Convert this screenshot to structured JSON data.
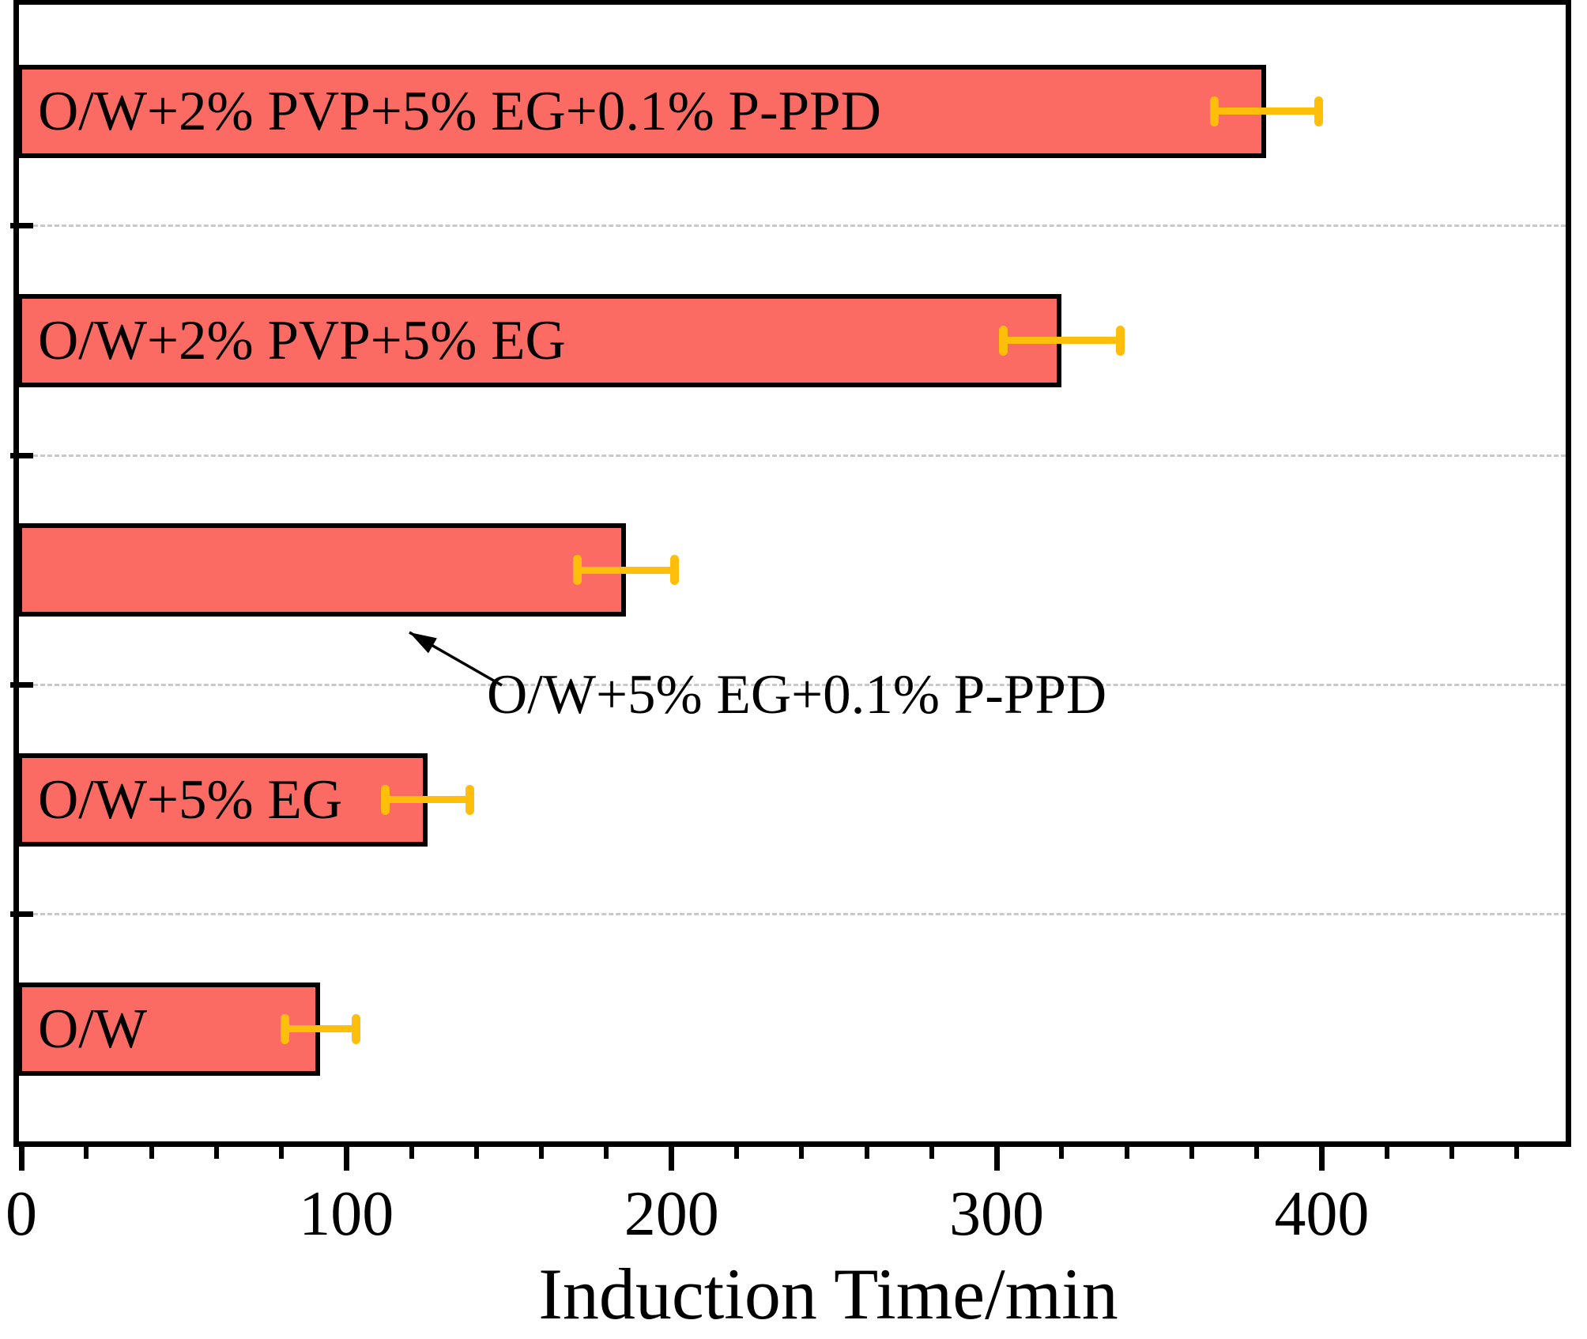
{
  "chart_data": {
    "type": "bar",
    "orientation": "horizontal",
    "title": "",
    "xlabel": "Induction Time/min",
    "ylabel": "",
    "xlim": [
      0,
      476
    ],
    "x_major_ticks": [
      0,
      100,
      200,
      300,
      400
    ],
    "x_tick_labels": [
      "0",
      "100",
      "200",
      "300",
      "400"
    ],
    "x_minor_tick_step": 20,
    "grid": {
      "horizontal_dashed_between_categories": true,
      "vertical": false
    },
    "legend": null,
    "categories_bottom_to_top": [
      "O/W",
      "O/W+5% EG",
      "O/W+5% EG+0.1% P-PPD",
      "O/W+2% PVP+5% EG",
      "O/W+2% PVP+5% EG+0.1% P-PPD"
    ],
    "values": [
      92,
      125,
      186,
      320,
      383
    ],
    "errors": [
      11,
      13,
      15,
      18,
      16
    ],
    "label_placement": [
      "inside",
      "inside",
      "annotation",
      "inside",
      "inside"
    ],
    "annotation": {
      "text": "O/W+5% EG+0.1% P-PPD",
      "points_to": "O/W+5% EG+0.1% P-PPD"
    },
    "colors": {
      "bar_fill": "#FB6B63",
      "bar_border": "#000000",
      "error_bar": "#FFBE0A",
      "gridline": "#C9C9C9",
      "axis": "#000000",
      "text": "#000000"
    }
  }
}
